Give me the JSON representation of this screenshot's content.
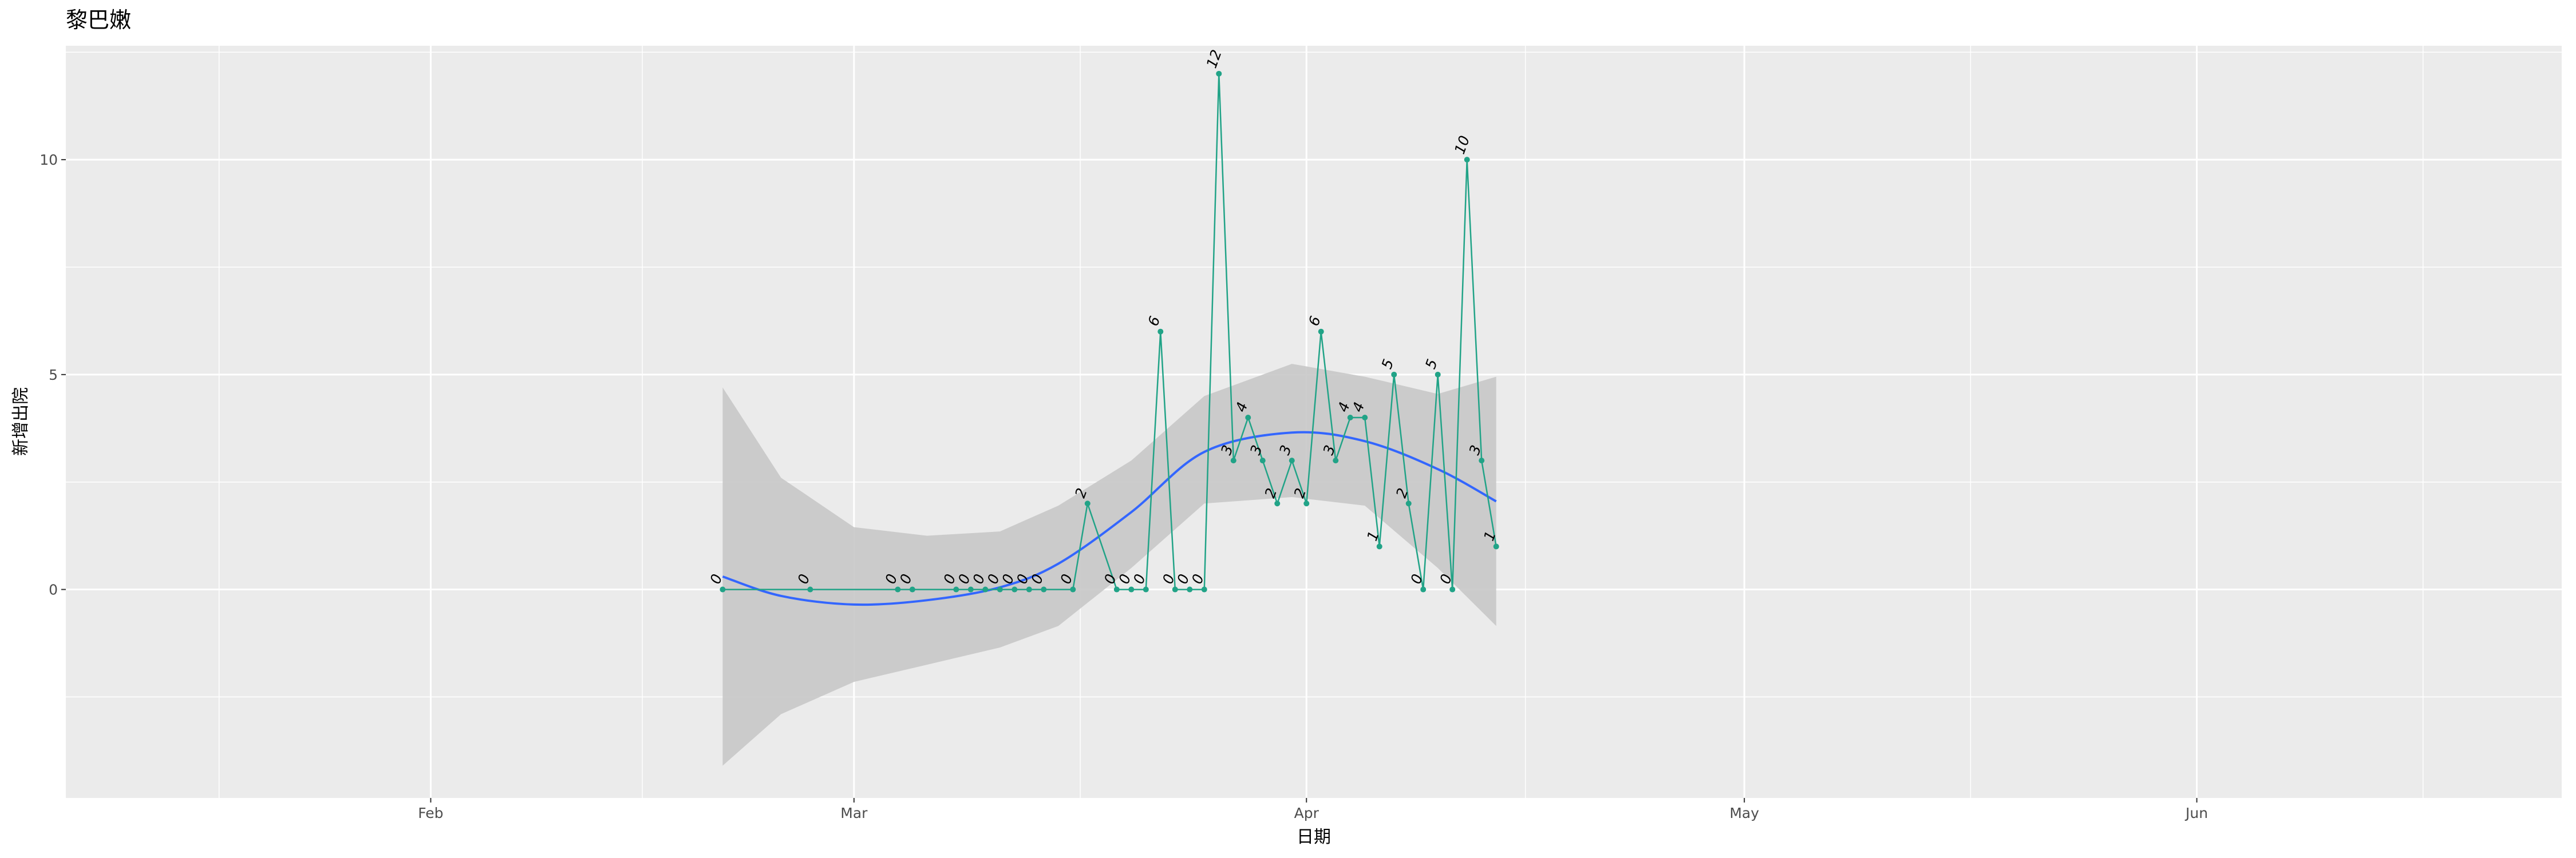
{
  "chart_data": {
    "type": "line",
    "title": "黎巴嫩",
    "xlabel": "日期",
    "ylabel": "新增出院",
    "xlim": [
      "2020-01-07",
      "2020-06-26"
    ],
    "ylim": [
      -4.85,
      12.65
    ],
    "x_ticks": [
      {
        "date": "2020-02-01",
        "label": "Feb"
      },
      {
        "date": "2020-03-01",
        "label": "Mar"
      },
      {
        "date": "2020-04-01",
        "label": "Apr"
      },
      {
        "date": "2020-05-01",
        "label": "May"
      },
      {
        "date": "2020-06-01",
        "label": "Jun"
      }
    ],
    "y_ticks": [
      0,
      5,
      10
    ],
    "grid": true,
    "series": [
      {
        "color": "#21a387",
        "x": [
          "2020-02-21",
          "2020-02-27",
          "2020-03-04",
          "2020-03-05",
          "2020-03-08",
          "2020-03-09",
          "2020-03-10",
          "2020-03-11",
          "2020-03-12",
          "2020-03-13",
          "2020-03-14",
          "2020-03-16",
          "2020-03-17",
          "2020-03-19",
          "2020-03-20",
          "2020-03-21",
          "2020-03-22",
          "2020-03-23",
          "2020-03-24",
          "2020-03-25",
          "2020-03-26",
          "2020-03-27",
          "2020-03-28",
          "2020-03-29",
          "2020-03-30",
          "2020-03-31",
          "2020-04-01",
          "2020-04-02",
          "2020-04-03",
          "2020-04-04",
          "2020-04-05",
          "2020-04-06",
          "2020-04-07",
          "2020-04-08",
          "2020-04-09",
          "2020-04-10",
          "2020-04-11",
          "2020-04-12",
          "2020-04-13",
          "2020-04-14"
        ],
        "y": [
          0,
          0,
          0,
          0,
          0,
          0,
          0,
          0,
          0,
          0,
          0,
          0,
          2,
          0,
          0,
          0,
          6,
          0,
          0,
          0,
          12,
          3,
          4,
          3,
          2,
          3,
          2,
          6,
          3,
          4,
          4,
          1,
          5,
          2,
          0,
          5,
          0,
          10,
          3,
          1
        ],
        "point_labels": [
          "0",
          "0",
          "0",
          "0",
          "0",
          "0",
          "0",
          "0",
          "0",
          "0",
          "0",
          "0",
          "2",
          "0",
          "0",
          "0",
          "6",
          "0",
          "0",
          "0",
          "12",
          "3",
          "4",
          "3",
          "2",
          "3",
          "2",
          "6",
          "3",
          "4",
          "4",
          "1",
          "5",
          "2",
          "0",
          "5",
          "0",
          "10",
          "3",
          "1"
        ]
      }
    ],
    "smooth": {
      "color": "#3366ff",
      "band_color": "#c8c8c8",
      "x": [
        "2020-02-21",
        "2020-02-25",
        "2020-03-01",
        "2020-03-06",
        "2020-03-11",
        "2020-03-15",
        "2020-03-20",
        "2020-03-25",
        "2020-03-31",
        "2020-04-05",
        "2020-04-10",
        "2020-04-14"
      ],
      "y": [
        0.3,
        -0.15,
        -0.35,
        -0.25,
        0.05,
        0.6,
        1.8,
        3.2,
        3.65,
        3.45,
        2.8,
        2.05
      ],
      "ymin": [
        -4.1,
        -2.9,
        -2.15,
        -1.75,
        -1.35,
        -0.85,
        0.5,
        2.0,
        2.15,
        1.95,
        0.5,
        -0.85
      ],
      "ymax": [
        4.7,
        2.6,
        1.45,
        1.25,
        1.35,
        1.95,
        3.0,
        4.5,
        5.25,
        4.95,
        4.55,
        4.95
      ]
    }
  }
}
